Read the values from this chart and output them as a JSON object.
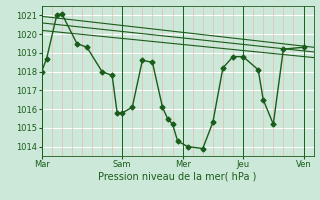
{
  "xlabel": "Pression niveau de la mer( hPa )",
  "background_color": "#cce8d8",
  "line_color": "#1a5c1a",
  "grid_color_h": "#ffffff",
  "grid_color_v_minor": "#e8b8b8",
  "grid_color_v_major": "#1a5c1a",
  "ylim": [
    1013.5,
    1021.5
  ],
  "yticks": [
    1014,
    1015,
    1016,
    1017,
    1018,
    1019,
    1020,
    1021
  ],
  "xtick_labels": [
    "Mar",
    "Sam",
    "Mer",
    "Jeu",
    "Ven"
  ],
  "xtick_positions": [
    0,
    8,
    14,
    20,
    26
  ],
  "xlim": [
    0,
    27
  ],
  "main_x": [
    0,
    0.5,
    1.5,
    2,
    3.5,
    4.5,
    6,
    7,
    7.5,
    8,
    9,
    10,
    11,
    12,
    12.5,
    13,
    13.5,
    14.5,
    16,
    17,
    18,
    19,
    20,
    21.5,
    22,
    23,
    24,
    26
  ],
  "main_y": [
    1018.0,
    1018.7,
    1021.0,
    1021.1,
    1019.5,
    1019.3,
    1018.0,
    1017.8,
    1015.8,
    1015.8,
    1016.1,
    1018.6,
    1018.5,
    1016.1,
    1015.5,
    1015.2,
    1014.3,
    1014.0,
    1013.9,
    1015.3,
    1018.2,
    1018.8,
    1018.8,
    1018.1,
    1016.5,
    1015.2,
    1019.2,
    1019.3
  ],
  "trend1_x": [
    0,
    27
  ],
  "trend1_y": [
    1020.95,
    1019.3
  ],
  "trend2_x": [
    0,
    27
  ],
  "trend2_y": [
    1020.6,
    1019.05
  ],
  "trend3_x": [
    0,
    27
  ],
  "trend3_y": [
    1020.2,
    1018.75
  ],
  "vlines_x": [
    0,
    8,
    14,
    20,
    26
  ],
  "minor_vlines_x": [
    1,
    2,
    3,
    4,
    5,
    6,
    7,
    9,
    10,
    11,
    12,
    13,
    15,
    16,
    17,
    18,
    19,
    21,
    22,
    23,
    24,
    25
  ],
  "marker": "D",
  "markersize": 2.5,
  "linewidth": 1.0,
  "trend_linewidth": 0.8,
  "fontsize": 7,
  "tick_fontsize": 6
}
